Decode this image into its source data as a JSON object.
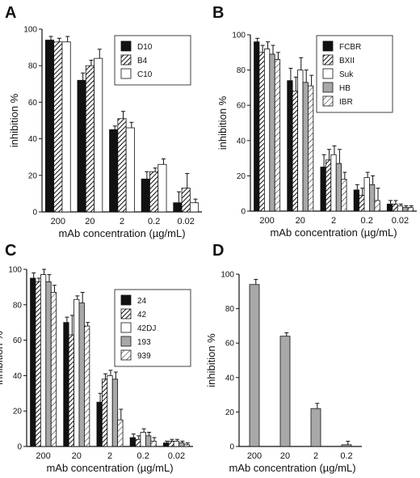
{
  "colors": {
    "black": "#111111",
    "white": "#ffffff",
    "gray": "#a8a8a8",
    "stroke": "#111111"
  },
  "chart_data": [
    {
      "panel": "A",
      "type": "bar",
      "xlabel": "mAb concentration (µg/mL)",
      "ylabel": "inhibition %",
      "ylim": [
        0,
        100
      ],
      "yticks": [
        "0",
        "20",
        "40",
        "60",
        "80",
        "100"
      ],
      "categories": [
        "200",
        "20",
        "2",
        "0.2",
        "0.02"
      ],
      "legend_position": "top-right",
      "series": [
        {
          "name": "D10",
          "fill": "solid-black",
          "values": [
            94,
            72,
            45,
            18,
            5
          ],
          "errors": [
            2,
            4,
            2,
            4,
            6
          ]
        },
        {
          "name": "B4",
          "fill": "hatch",
          "values": [
            93,
            80,
            51,
            22,
            13
          ],
          "errors": [
            2,
            3,
            4,
            2,
            8
          ]
        },
        {
          "name": "C10",
          "fill": "white",
          "values": [
            93,
            84,
            46,
            26,
            5
          ],
          "errors": [
            3,
            5,
            3,
            3,
            2
          ]
        }
      ]
    },
    {
      "panel": "B",
      "type": "bar",
      "xlabel": "mAb concentration (µg/mL)",
      "ylabel": "inhibition %",
      "ylim": [
        0,
        100
      ],
      "yticks": [
        "0",
        "20",
        "40",
        "60",
        "80",
        "100"
      ],
      "categories": [
        "200",
        "20",
        "2",
        "0.2",
        "0.02"
      ],
      "legend_position": "top-right",
      "series": [
        {
          "name": "FCBR",
          "fill": "solid-black",
          "values": [
            96,
            74,
            25,
            12,
            4
          ],
          "errors": [
            2,
            7,
            7,
            3,
            2
          ]
        },
        {
          "name": "BXII",
          "fill": "hatch",
          "values": [
            90,
            68,
            29,
            9,
            4
          ],
          "errors": [
            4,
            8,
            6,
            4,
            2
          ]
        },
        {
          "name": "Suk",
          "fill": "white",
          "values": [
            92,
            80,
            32,
            19,
            3
          ],
          "errors": [
            4,
            7,
            5,
            3,
            1
          ]
        },
        {
          "name": "HB",
          "fill": "gray",
          "values": [
            89,
            73,
            27,
            15,
            2
          ],
          "errors": [
            5,
            7,
            8,
            5,
            1
          ]
        },
        {
          "name": "IBR",
          "fill": "hatch-light",
          "values": [
            86,
            71,
            18,
            6,
            2
          ],
          "errors": [
            4,
            6,
            4,
            7,
            1
          ]
        }
      ]
    },
    {
      "panel": "C",
      "type": "bar",
      "xlabel": "mAb concentration (µg/mL)",
      "ylabel": "inhibition %",
      "ylim": [
        0,
        100
      ],
      "yticks": [
        "0",
        "20",
        "40",
        "60",
        "80",
        "100"
      ],
      "categories": [
        "200",
        "20",
        "2",
        "0.2",
        "0.02"
      ],
      "legend_position": "top-right",
      "series": [
        {
          "name": "24",
          "fill": "solid-black",
          "values": [
            95,
            70,
            25,
            5,
            2
          ],
          "errors": [
            3,
            3,
            5,
            2,
            1
          ]
        },
        {
          "name": "42",
          "fill": "hatch",
          "values": [
            93,
            63,
            38,
            4,
            3
          ],
          "errors": [
            2,
            11,
            3,
            2,
            1
          ]
        },
        {
          "name": "42DJ",
          "fill": "white",
          "values": [
            97,
            83,
            40,
            8,
            3
          ],
          "errors": [
            3,
            2,
            3,
            2,
            1
          ]
        },
        {
          "name": "193",
          "fill": "gray",
          "values": [
            93,
            81,
            38,
            6,
            2
          ],
          "errors": [
            4,
            6,
            4,
            2,
            1
          ]
        },
        {
          "name": "939",
          "fill": "hatch-light",
          "values": [
            87,
            68,
            15,
            3,
            1
          ],
          "errors": [
            4,
            2,
            6,
            2,
            1
          ]
        }
      ]
    },
    {
      "panel": "D",
      "type": "bar",
      "xlabel": "mAb concentration (µg/mL)",
      "ylabel": "inhibition %",
      "ylim": [
        0,
        100
      ],
      "yticks": [
        "0",
        "20",
        "40",
        "60",
        "80",
        "100"
      ],
      "categories": [
        "200",
        "20",
        "2",
        "0.2"
      ],
      "series": [
        {
          "name": "",
          "fill": "gray",
          "values": [
            94,
            64,
            22,
            1
          ],
          "errors": [
            3,
            2,
            3,
            2
          ]
        }
      ]
    }
  ]
}
